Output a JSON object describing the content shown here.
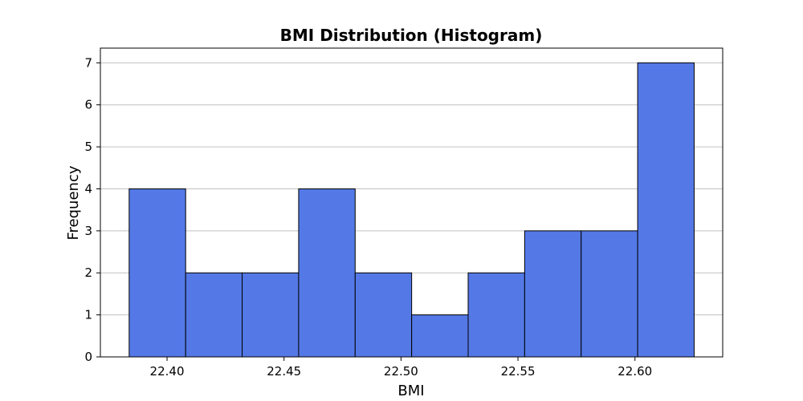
{
  "chart_data": {
    "type": "bar",
    "title": "BMI Distribution (Histogram)",
    "xlabel": "BMI",
    "ylabel": "Frequency",
    "bin_edges": [
      22.3838,
      22.40795,
      22.4321,
      22.45625,
      22.4804,
      22.50455,
      22.5287,
      22.55285,
      22.577,
      22.60115,
      22.6253
    ],
    "values": [
      4,
      2,
      2,
      4,
      2,
      1,
      2,
      3,
      3,
      7
    ],
    "xlim": [
      22.3715,
      22.6375
    ],
    "ylim": [
      0,
      7.35
    ],
    "x_ticks": [
      22.4,
      22.45,
      22.5,
      22.55,
      22.6
    ],
    "x_tick_labels": [
      "22.40",
      "22.45",
      "22.50",
      "22.55",
      "22.60"
    ],
    "y_ticks": [
      0,
      1,
      2,
      3,
      4,
      5,
      6,
      7
    ],
    "y_tick_labels": [
      "0",
      "1",
      "2",
      "3",
      "4",
      "5",
      "6",
      "7"
    ],
    "grid": "y",
    "legend": "none",
    "bar_color": "#5479e6",
    "bar_edge_color": "#000000",
    "grid_color": "#c0c0c0"
  }
}
